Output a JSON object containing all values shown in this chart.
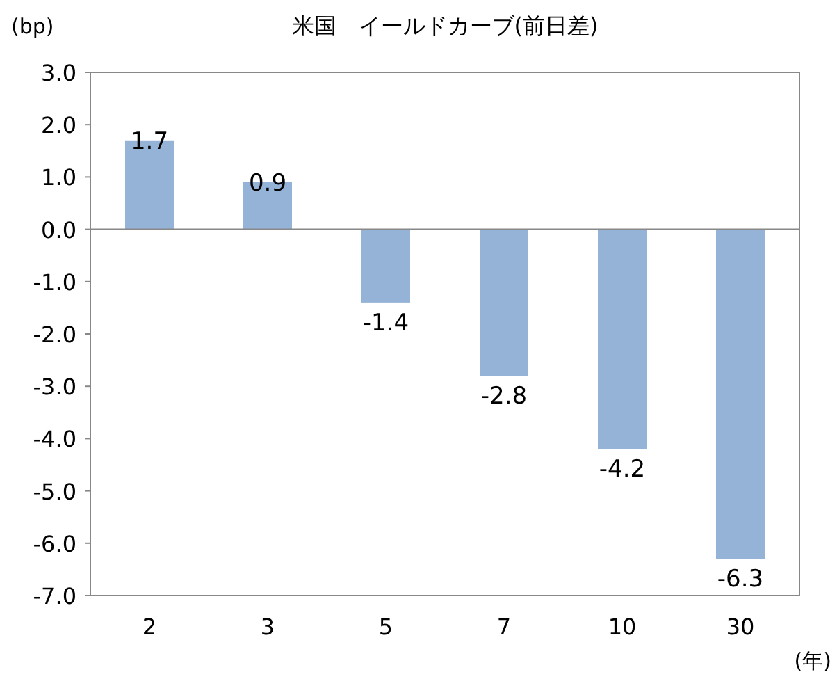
{
  "chart_data": {
    "type": "bar",
    "title": "米国　イールドカーブ(前日差)",
    "ylabel": "(bp)",
    "xlabel": "(年)",
    "categories": [
      "2",
      "3",
      "5",
      "7",
      "10",
      "30"
    ],
    "values": [
      1.7,
      0.9,
      -1.4,
      -2.8,
      -4.2,
      -6.3
    ],
    "color": "#95b3d7",
    "ylim": [
      -7,
      3
    ],
    "yticks": [
      {
        "value": 3,
        "label": "3.0"
      },
      {
        "value": 2,
        "label": "2.0"
      },
      {
        "value": 1,
        "label": "1.0"
      },
      {
        "value": 0,
        "label": "0.0"
      },
      {
        "value": -1,
        "label": "-1.0"
      },
      {
        "value": -2,
        "label": "-2.0"
      },
      {
        "value": -3,
        "label": "-3.0"
      },
      {
        "value": -4,
        "label": "-4.0"
      },
      {
        "value": -5,
        "label": "-5.0"
      },
      {
        "value": -6,
        "label": "-6.0"
      },
      {
        "value": -7,
        "label": "-7.0"
      }
    ],
    "data_labels": true
  }
}
